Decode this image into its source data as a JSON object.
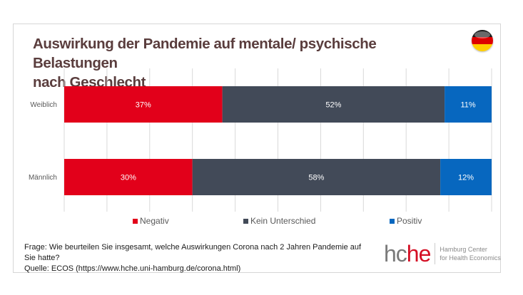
{
  "chart_data": {
    "type": "bar",
    "orientation": "horizontal",
    "stacked": true,
    "title": "Auswirkung der Pandemie auf mentale/ psychische Belastungen nach Geschlecht",
    "categories": [
      "Weiblich",
      "Männlich"
    ],
    "series": [
      {
        "name": "Negativ",
        "color": "#e2001a",
        "values": [
          37,
          30
        ],
        "labels": [
          "37%",
          "30%"
        ]
      },
      {
        "name": "Kein Unterschied",
        "color": "#424a58",
        "values": [
          52,
          58
        ],
        "labels": [
          "52%",
          "58%"
        ]
      },
      {
        "name": "Positiv",
        "color": "#0767bf",
        "values": [
          11,
          12
        ],
        "labels": [
          "11%",
          "12%"
        ]
      }
    ],
    "xlim": [
      0,
      100
    ],
    "grid": true,
    "legend_position": "bottom"
  },
  "header": {
    "title_line1": "Auswirkung der Pandemie auf mentale/ psychische Belastungen",
    "title_line2": "nach Geschlecht",
    "flag_icon": "germany-flag-icon"
  },
  "footer": {
    "question_line1": "Frage: Wie beurteilen Sie insgesamt, welche Auswirkungen Corona nach 2 Jahren Pandemie auf",
    "question_line2": "Sie hatte?",
    "source": "Quelle: ECOS (https://www.hche.uni-hamburg.de/corona.html)"
  },
  "logo": {
    "mark_gray": "hc",
    "mark_red": "he",
    "line1": "Hamburg Center",
    "line2": "for Health Economics"
  }
}
